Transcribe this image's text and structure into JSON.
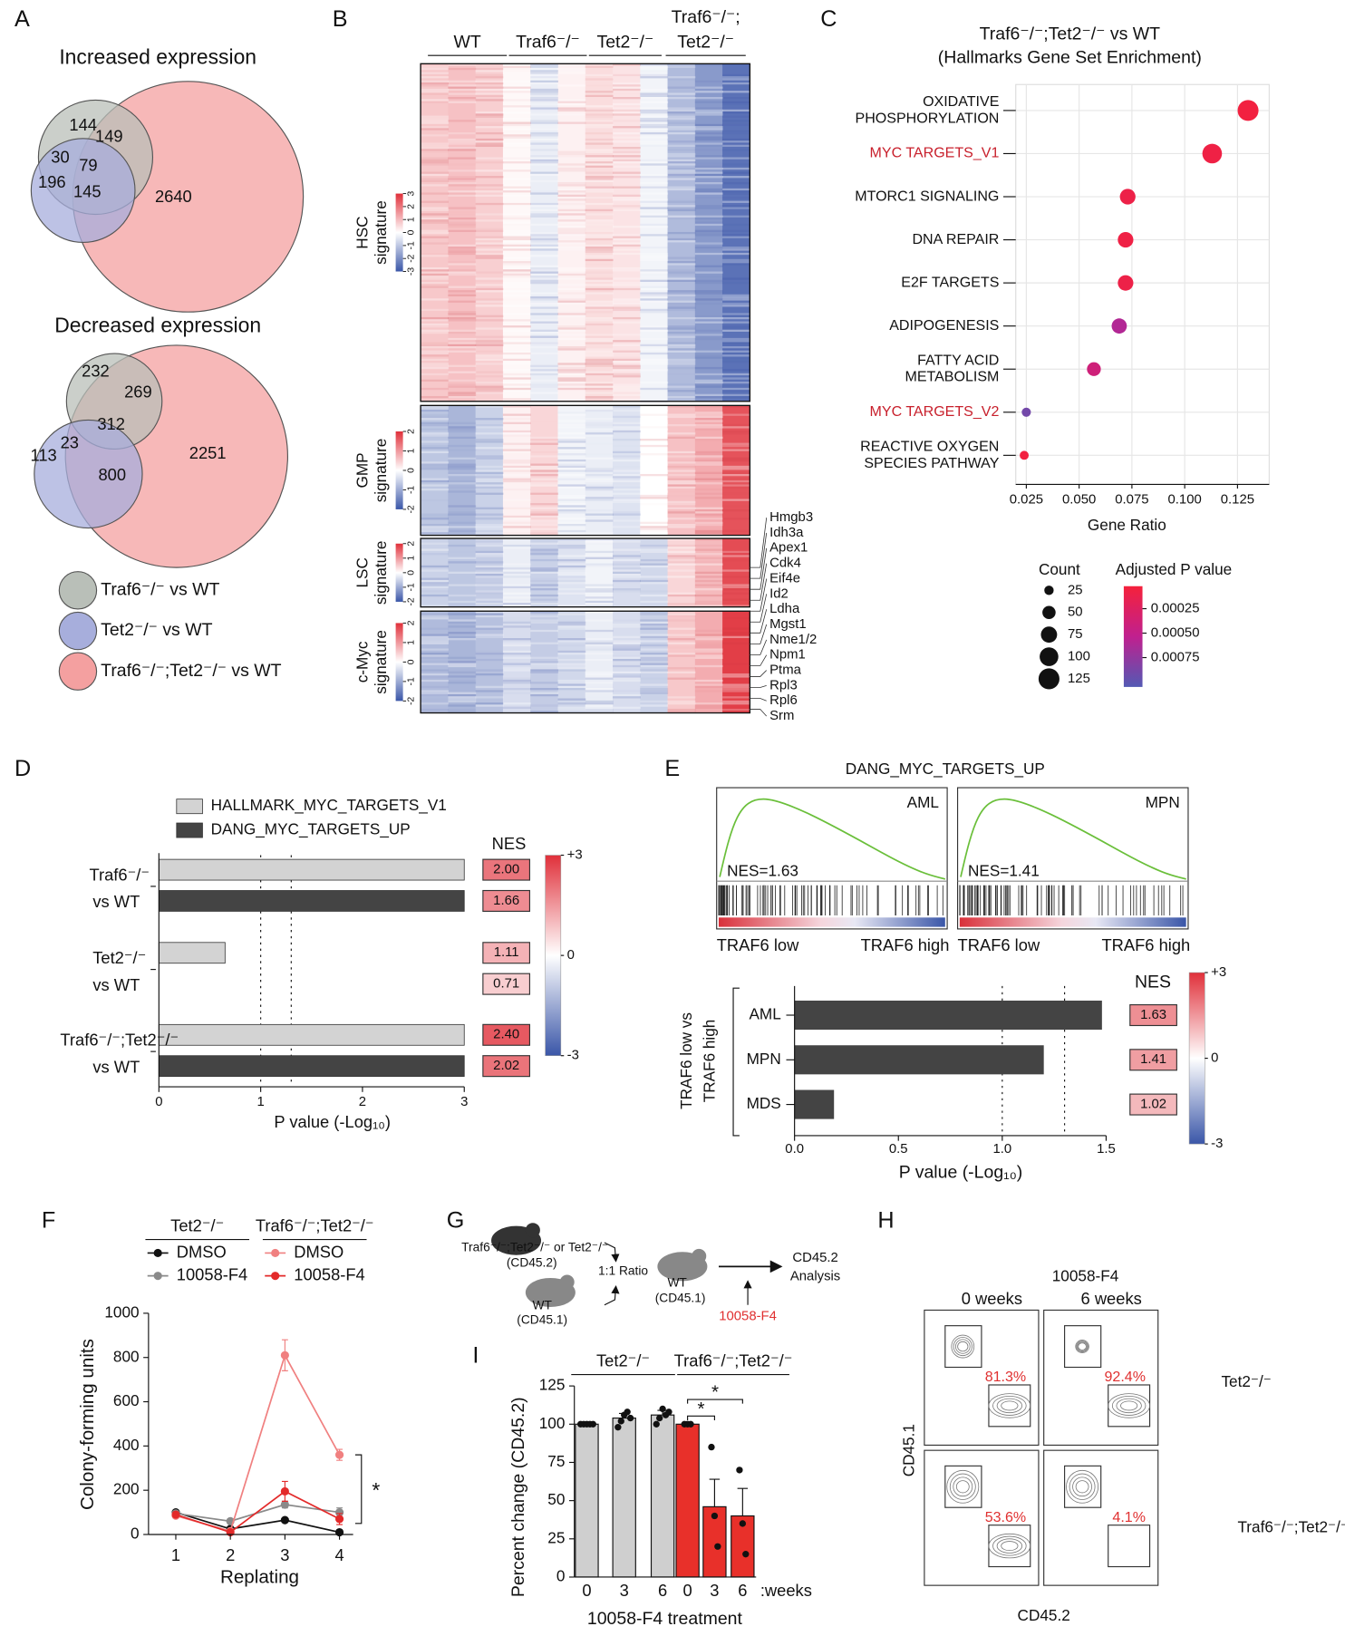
{
  "panel_labels": [
    "A",
    "B",
    "C",
    "D",
    "E",
    "F",
    "G",
    "H",
    "I"
  ],
  "venn": {
    "increased": {
      "title": "Increased expression",
      "counts": [
        144,
        149,
        30,
        79,
        196,
        145,
        2640
      ]
    },
    "decreased": {
      "title": "Decreased expression",
      "counts": [
        232,
        269,
        23,
        312,
        113,
        800,
        2251
      ]
    },
    "legend": [
      {
        "label": "Traf6⁻/⁻ vs WT",
        "color": "#b9bfb8"
      },
      {
        "label": "Tet2⁻/⁻ vs WT",
        "color": "#a7aedc"
      },
      {
        "label": "Traf6⁻/⁻;Tet2⁻/⁻ vs WT",
        "color": "#f4a0a0"
      }
    ]
  },
  "heatmap": {
    "groups": [
      [
        "WT"
      ],
      [
        "Traf6⁻/⁻"
      ],
      [
        "Tet2⁻/⁻"
      ],
      [
        "Traf6⁻/⁻;",
        "Tet2⁻/⁻"
      ]
    ],
    "color_lim": [
      -3,
      3
    ],
    "signatures": [
      {
        "label": [
          "HSC",
          "signature"
        ],
        "ticks": [
          -3,
          -2,
          -1,
          0,
          1,
          2,
          3
        ],
        "column_values": [
          0.8,
          0.9,
          0.7,
          0.1,
          -0.3,
          0.2,
          0.5,
          0.4,
          -0.2,
          -1.2,
          -1.8,
          -2.5
        ]
      },
      {
        "label": [
          "GMP",
          "signature"
        ],
        "ticks": [
          -2,
          -1,
          0,
          1,
          2
        ],
        "column_values": [
          -1.0,
          -1.3,
          -0.8,
          0.2,
          0.6,
          -0.2,
          -0.3,
          -0.5,
          0,
          0.9,
          1.2,
          2.5
        ]
      },
      {
        "label": [
          "LSC",
          "signature"
        ],
        "ticks": [
          -2,
          -1,
          0,
          1,
          2
        ],
        "column_values": [
          -0.8,
          -1.0,
          -0.9,
          -0.3,
          -0.8,
          -0.5,
          -0.2,
          -0.6,
          -0.7,
          0.6,
          1.0,
          2.6
        ]
      },
      {
        "label": [
          "c-Myc",
          "signature"
        ],
        "ticks": [
          -2,
          -1,
          0,
          1,
          2
        ],
        "column_values": [
          -1.2,
          -1.3,
          -1.1,
          -0.6,
          -0.9,
          -0.7,
          -0.3,
          -0.6,
          -0.8,
          0.8,
          1.2,
          2.8
        ]
      }
    ],
    "genes": [
      "Hmgb3",
      "Idh3a",
      "Apex1",
      "Cdk4",
      "Eif4e",
      "Id2",
      "Ldha",
      "Mgst1",
      "Nme1/2",
      "Npm1",
      "Ptma",
      "Rpl3",
      "Rpl6",
      "Srm"
    ]
  },
  "dotplot": {
    "title": [
      "Traf6⁻/⁻;Tet2⁻/⁻ vs WT",
      "(Hallmarks Gene Set Enrichment)"
    ],
    "categories": [
      {
        "lines": [
          "OXIDATIVE",
          "PHOSPHORYLATION"
        ],
        "color": "#111111"
      },
      {
        "lines": [
          "MYC TARGETS_V1"
        ],
        "color": "#c8202c"
      },
      {
        "lines": [
          "MTORC1 SIGNALING"
        ],
        "color": "#111111"
      },
      {
        "lines": [
          "DNA REPAIR"
        ],
        "color": "#111111"
      },
      {
        "lines": [
          "E2F TARGETS"
        ],
        "color": "#111111"
      },
      {
        "lines": [
          "ADIPOGENESIS"
        ],
        "color": "#111111"
      },
      {
        "lines": [
          "FATTY ACID",
          "METABOLISM"
        ],
        "color": "#111111"
      },
      {
        "lines": [
          "MYC TARGETS_V2"
        ],
        "color": "#c8202c"
      },
      {
        "lines": [
          "REACTIVE OXYGEN",
          "SPECIES PATHWAY"
        ],
        "color": "#111111"
      }
    ],
    "gene_ratio": [
      0.13,
      0.113,
      0.073,
      0.072,
      0.072,
      0.069,
      0.057,
      0.025,
      0.024
    ],
    "count": [
      125,
      110,
      70,
      69,
      69,
      66,
      55,
      24,
      23
    ],
    "adjusted_p": [
      5e-05,
      8e-05,
      0.0001,
      8e-05,
      0.0001,
      0.0006,
      0.0004,
      0.0009,
      5e-05
    ],
    "xlim": [
      0.02,
      0.14
    ],
    "xticks": [
      0.025,
      {
        "value": 0.05,
        "label": "0.050"
      },
      0.075,
      {
        "value": 0.1,
        "label": "0.100"
      },
      0.125
    ],
    "grid": true,
    "xlabel": "Gene Ratio",
    "size_legend": {
      "title": "Count",
      "values": [
        25,
        50,
        75,
        100,
        125
      ]
    },
    "color_legend": {
      "title": "Adjusted P value",
      "lim": [
        2e-05,
        0.00105
      ],
      "ticks": [
        0.00025,
        {
          "value": 0.0005,
          "label": "0.00050"
        },
        {
          "value": 0.00075,
          "label": "0.00075"
        }
      ]
    }
  },
  "nes_bars": {
    "series": [
      {
        "name": "HALLMARK_MYC_TARGETS_V1",
        "color": "#d3d3d3",
        "values": [
          3,
          0.65,
          3
        ],
        "nes": [
          2.0,
          1.11,
          2.4
        ],
        "nes_labels": [
          "2.00",
          "1.11",
          "2.40"
        ]
      },
      {
        "name": "DANG_MYC_TARGETS_UP",
        "color": "#444444",
        "values": [
          3,
          null,
          3
        ],
        "nes": [
          1.66,
          0.71,
          2.02
        ],
        "nes_labels": [
          "1.66",
          "0.71",
          "2.02"
        ]
      }
    ],
    "groups": [
      [
        "Traf6⁻/⁻",
        "vs WT"
      ],
      [
        "Tet2⁻/⁻",
        "vs  WT"
      ],
      [
        "Traf6⁻/⁻;Tet2⁻/⁻",
        "vs WT"
      ]
    ],
    "xlim": [
      0,
      3
    ],
    "xticks": [
      0,
      1,
      2,
      3
    ],
    "thresholds": [
      1,
      1.3
    ],
    "xlabel": "P value (-Log₁₀)",
    "nes_title": "NES",
    "nes_scale": {
      "lim": [
        -3,
        3
      ],
      "ticks": [
        {
          "value": 3,
          "label": "+3"
        },
        0,
        -3
      ]
    }
  },
  "gsea": {
    "title": "DANG_MYC_TARGETS_UP",
    "plots": [
      {
        "name": "AML",
        "nes_label": "NES=1.63"
      },
      {
        "name": "MPN",
        "nes_label": "NES=1.41"
      }
    ],
    "low_label": "TRAF6 low",
    "high_label": "TRAF6 high",
    "bars": {
      "categories": [
        "AML",
        "MPN",
        "MDS"
      ],
      "values": [
        1.48,
        1.2,
        0.19
      ],
      "color": "#444444",
      "nes": [
        1.63,
        1.41,
        1.02
      ],
      "nes_labels": [
        "1.63",
        "1.41",
        "1.02"
      ],
      "ylabel": [
        "TRAF6 low vs",
        "TRAF6 high"
      ],
      "xlim": [
        0,
        1.5
      ],
      "xticks": [
        {
          "value": 0,
          "label": "0.0"
        },
        0.5,
        {
          "value": 1,
          "label": "1.0"
        },
        1.5
      ],
      "thresholds": [
        1,
        1.3
      ],
      "xlabel": "P value (-Log₁₀)",
      "nes_title": "NES",
      "nes_scale": {
        "lim": [
          -3,
          3
        ],
        "ticks": [
          {
            "value": 3,
            "label": "+3"
          },
          0,
          -3
        ]
      }
    }
  },
  "colony": {
    "x": [
      1,
      2,
      3,
      4
    ],
    "xlim": [
      0.5,
      4.25
    ],
    "ylim": [
      0,
      1000
    ],
    "yticks": [
      0,
      200,
      400,
      600,
      800,
      1000
    ],
    "ylabel": "Colony-forming units",
    "xlabel": "Replating",
    "significance": "*",
    "groups": [
      {
        "name": "Tet2⁻/⁻",
        "series": [
          {
            "name": "DMSO",
            "color": "#111111",
            "values": [
              100,
              25,
              65,
              10
            ],
            "errors": [
              8,
              6,
              8,
              4
            ]
          },
          {
            "name": "10058-F4",
            "color": "#8a8a8a",
            "values": [
              95,
              60,
              135,
              100
            ],
            "errors": [
              8,
              10,
              15,
              20
            ]
          }
        ]
      },
      {
        "name": "Traf6⁻/⁻;Tet2⁻/⁻",
        "series": [
          {
            "name": "DMSO",
            "color": "#f08080",
            "values": [
              85,
              15,
              810,
              360
            ],
            "errors": [
              8,
              5,
              70,
              25
            ]
          },
          {
            "name": "10058-F4",
            "color": "#e32a2a",
            "values": [
              90,
              10,
              195,
              70
            ],
            "errors": [
              8,
              4,
              45,
              25
            ]
          }
        ]
      }
    ]
  },
  "schematic": {
    "donor": "Traf6⁻/⁻;Tet2⁻/⁻ or Tet2⁻/⁻",
    "donor_marker": "(CD45.2)",
    "competitor": "WT",
    "competitor_marker": "(CD45.1)",
    "ratio": "1:1 Ratio",
    "recipient": "WT",
    "recipient_marker": "(CD45.1)",
    "treatment": "10058-F4",
    "readout": [
      "CD45.2",
      "Analysis"
    ]
  },
  "flow": {
    "title": "10058-F4",
    "timepoints": [
      "0 weeks",
      "6 weeks"
    ],
    "rows": [
      "Tet2⁻/⁻",
      "Traf6⁻/⁻;Tet2⁻/⁻"
    ],
    "percents": [
      [
        "81.3%",
        "92.4%"
      ],
      [
        "53.6%",
        "4.1%"
      ]
    ],
    "ylabel": "CD45.1",
    "xlabel": "CD45.2"
  },
  "engraftment": {
    "groups": [
      {
        "name": "Tet2⁻/⁻",
        "color": "#cfcfcf"
      },
      {
        "name": "Traf6⁻/⁻;Tet2⁻/⁻",
        "color": "#e8302a"
      }
    ],
    "categories": [
      "0",
      "3",
      "6",
      "0",
      "3",
      "6"
    ],
    "unit": ":weeks",
    "values": [
      100,
      104,
      106,
      100,
      46,
      40
    ],
    "errors": [
      0,
      3,
      3,
      0,
      18,
      18
    ],
    "points": [
      [
        100,
        100,
        100,
        100,
        100
      ],
      [
        98,
        102,
        106,
        108,
        104
      ],
      [
        100,
        104,
        110,
        106,
        108
      ],
      [
        100,
        100,
        100
      ],
      [
        85,
        40,
        20
      ],
      [
        70,
        35,
        15
      ]
    ],
    "ylim": [
      0,
      125
    ],
    "yticks": [
      0,
      25,
      50,
      75,
      100,
      125
    ],
    "ylabel": "Percent change (CD45.2)",
    "xlabel": "10058-F4 treatment",
    "comparisons": [
      {
        "label": "*",
        "from": 3,
        "to": 5
      },
      {
        "label": "*",
        "from": 3,
        "to": 4
      }
    ]
  }
}
